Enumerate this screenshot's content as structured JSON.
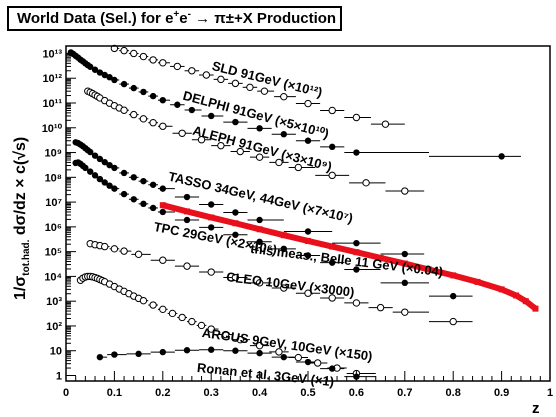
{
  "chart_data": {
    "type": "scatter",
    "title_prefix": "World Data (Sel.) for e",
    "title_sup1": "+",
    "title_mid": "e",
    "title_sup2": "-",
    "title_suffix": " → π±+X Production",
    "ylabel_prefix": "1/σ",
    "ylabel_sub": "tot.had.",
    "ylabel_suffix": " dσ/dz × c(√s)",
    "xlabel": "z",
    "xlim": [
      0,
      1.0
    ],
    "ylim": [
      0.6,
      20000000000000.0
    ],
    "yscale": "log",
    "x_ticks": [
      "0",
      "0.1",
      "0.2",
      "0.3",
      "0.4",
      "0.5",
      "0.6",
      "0.7",
      "0.8",
      "0.9",
      "1"
    ],
    "y_ticks": [
      "1",
      "10",
      "10²",
      "10³",
      "10⁴",
      "10⁵",
      "10⁶",
      "10⁷",
      "10⁸",
      "10⁹",
      "10¹⁰",
      "10¹¹",
      "10¹²",
      "10¹³"
    ],
    "series": [
      {
        "name": "SLD 91GeV (×10¹²)",
        "marker": "open",
        "x": [
          0.1,
          0.12,
          0.14,
          0.16,
          0.18,
          0.2,
          0.23,
          0.26,
          0.29,
          0.32,
          0.35,
          0.38,
          0.41,
          0.45,
          0.5,
          0.55,
          0.6,
          0.66
        ],
        "y": [
          16000000000000.0,
          13000000000000.0,
          10000000000000.0,
          7500000000000.0,
          5500000000000.0,
          4200000000000.0,
          3000000000000.0,
          2000000000000.0,
          1350000000000.0,
          900000000000.0,
          620000000000.0,
          430000000000.0,
          300000000000.0,
          180000000000.0,
          95000000000.0,
          50000000000.0,
          26000000000.0,
          14000000000.0
        ]
      },
      {
        "name": "DELPHI 91GeV (×5×10¹⁰)",
        "marker": "filled",
        "x": [
          0.01,
          0.015,
          0.02,
          0.025,
          0.03,
          0.035,
          0.04,
          0.045,
          0.05,
          0.06,
          0.07,
          0.08,
          0.09,
          0.1,
          0.12,
          0.14,
          0.16,
          0.18,
          0.2,
          0.23,
          0.26,
          0.3,
          0.35,
          0.4,
          0.45,
          0.5,
          0.55,
          0.6,
          0.9
        ],
        "y": [
          11000000000000.0,
          9500000000000.0,
          8000000000000.0,
          6800000000000.0,
          5600000000000.0,
          4800000000000.0,
          4000000000000.0,
          3400000000000.0,
          2900000000000.0,
          2200000000000.0,
          1700000000000.0,
          1350000000000.0,
          1100000000000.0,
          850000000000.0,
          580000000000.0,
          400000000000.0,
          280000000000.0,
          190000000000.0,
          130000000000.0,
          85000000000.0,
          52000000000.0,
          30000000000.0,
          17000000000.0,
          9500000000.0,
          5500000000.0,
          3000000000.0,
          1700000000.0,
          1000000000.0,
          700000000.0
        ]
      },
      {
        "name": "ALEPH 91GeV (×3×10⁹)",
        "marker": "open",
        "x": [
          0.045,
          0.05,
          0.055,
          0.06,
          0.065,
          0.07,
          0.08,
          0.09,
          0.1,
          0.11,
          0.12,
          0.14,
          0.16,
          0.18,
          0.2,
          0.24,
          0.28,
          0.32,
          0.36,
          0.4,
          0.44,
          0.48,
          0.55,
          0.62,
          0.7
        ],
        "y": [
          300000000000.0,
          270000000000.0,
          240000000000.0,
          210000000000.0,
          185000000000.0,
          160000000000.0,
          125000000000.0,
          98000000000.0,
          78000000000.0,
          63000000000.0,
          51000000000.0,
          34000000000.0,
          23000000000.0,
          16000000000.0,
          11500000000.0,
          6000000000.0,
          3300000000.0,
          1900000000.0,
          1100000000.0,
          650000000.0,
          400000000.0,
          250000000.0,
          120000000.0,
          60000000.0,
          28000000.0
        ]
      },
      {
        "name": "TASSO 34GeV, 44GeV (×7×10⁷)",
        "marker": "filled",
        "x": [
          0.02,
          0.025,
          0.03,
          0.035,
          0.04,
          0.045,
          0.05,
          0.06,
          0.07,
          0.08,
          0.09,
          0.1,
          0.12,
          0.14,
          0.16,
          0.18,
          0.2,
          0.25,
          0.3,
          0.35,
          0.4,
          0.5,
          0.6,
          0.7
        ],
        "y": [
          2600000000.0,
          2400000000.0,
          2100000000.0,
          1800000000.0,
          1500000000.0,
          1250000000.0,
          1050000000.0,
          750000000.0,
          550000000.0,
          410000000.0,
          310000000.0,
          240000000.0,
          150000000.0,
          100000000.0,
          70000000.0,
          50000000.0,
          35000000.0,
          16000000.0,
          8000000.0,
          3800000.0,
          1900000.0,
          650000.0,
          220000.0,
          80000.0
        ]
      },
      {
        "name": "TPC 29GeV (×2×10⁶)",
        "marker": "filled",
        "x": [
          0.02,
          0.025,
          0.03,
          0.035,
          0.04,
          0.05,
          0.06,
          0.07,
          0.08,
          0.09,
          0.1,
          0.12,
          0.14,
          0.16,
          0.18,
          0.2,
          0.25,
          0.3,
          0.35,
          0.4,
          0.45,
          0.5,
          0.55,
          0.6,
          0.7,
          0.8
        ],
        "y": [
          380000000.0,
          400000000.0,
          350000000.0,
          290000000.0,
          240000000.0,
          170000000.0,
          120000000.0,
          85000000.0,
          62000000.0,
          46000000.0,
          35000000.0,
          21000000.0,
          13000000.0,
          8500000.0,
          5800000.0,
          4000000.0,
          1900000.0,
          950000.0,
          480000.0,
          250000.0,
          130000.0,
          70000.0,
          36000.0,
          19000.0,
          5500.0,
          1600.0
        ]
      },
      {
        "name": "this meas., Belle 11 GeV (×0.04)",
        "marker": "band",
        "x": [
          0.2,
          0.25,
          0.3,
          0.35,
          0.4,
          0.45,
          0.5,
          0.55,
          0.6,
          0.65,
          0.7,
          0.75,
          0.8,
          0.85,
          0.9,
          0.93,
          0.95,
          0.97
        ],
        "y": [
          7500000.0,
          4200000.0,
          2400000.0,
          1400000.0,
          800000.0,
          460000.0,
          270000.0,
          160000.0,
          95000.0,
          56000.0,
          33000.0,
          19000.0,
          11000.0,
          6000.0,
          3000.0,
          1700.0,
          1000.0,
          500.0
        ]
      },
      {
        "name": "CLEO 10GeV (×3000)",
        "marker": "open",
        "x": [
          0.05,
          0.06,
          0.07,
          0.08,
          0.1,
          0.12,
          0.15,
          0.2,
          0.25,
          0.3,
          0.35,
          0.4,
          0.45,
          0.5,
          0.55,
          0.6,
          0.65,
          0.7,
          0.8
        ],
        "y": [
          210000.0,
          190000.0,
          175000.0,
          160000.0,
          130000.0,
          105000.0,
          78000.0,
          45000.0,
          26000.0,
          15000.0,
          9000.0,
          5500.0,
          3400.0,
          2100.0,
          1350.0,
          850.0,
          550.0,
          360.0,
          150.0
        ]
      },
      {
        "name": "ARGUS 9GeV, 10GeV (×150)",
        "marker": "open",
        "x": [
          0.03,
          0.035,
          0.04,
          0.045,
          0.05,
          0.055,
          0.06,
          0.065,
          0.07,
          0.075,
          0.08,
          0.09,
          0.1,
          0.11,
          0.12,
          0.13,
          0.14,
          0.15,
          0.16,
          0.18,
          0.2,
          0.22,
          0.24,
          0.26,
          0.28,
          0.3,
          0.33,
          0.36,
          0.4,
          0.44,
          0.48,
          0.52,
          0.56,
          0.6
        ],
        "y": [
          7000.0,
          8500.0,
          9500.0,
          10000.0,
          10000.0,
          9600.0,
          9000.0,
          8300.0,
          7500.0,
          6800.0,
          6100.0,
          4900.0,
          3900.0,
          3100.0,
          2500.0,
          2000.0,
          1600.0,
          1300.0,
          1050.0,
          700.0,
          470.0,
          320.0,
          220.0,
          150.0,
          105.0,
          75.0,
          45.0,
          28.0,
          16.0,
          9.0,
          5.3,
          3.2,
          2.0,
          1.2
        ]
      },
      {
        "name": "Ronan et al. 3GeV (×1)",
        "marker": "filled",
        "x": [
          0.07,
          0.1,
          0.15,
          0.2,
          0.25,
          0.3,
          0.35,
          0.4,
          0.45,
          0.5,
          0.55,
          0.6
        ],
        "y": [
          5.5,
          7.0,
          7.5,
          8.8,
          10.5,
          11.0,
          10.0,
          8.0,
          5.5,
          3.5,
          1.9,
          0.9
        ]
      }
    ],
    "legend": "inline labels along curves",
    "grid": false
  }
}
